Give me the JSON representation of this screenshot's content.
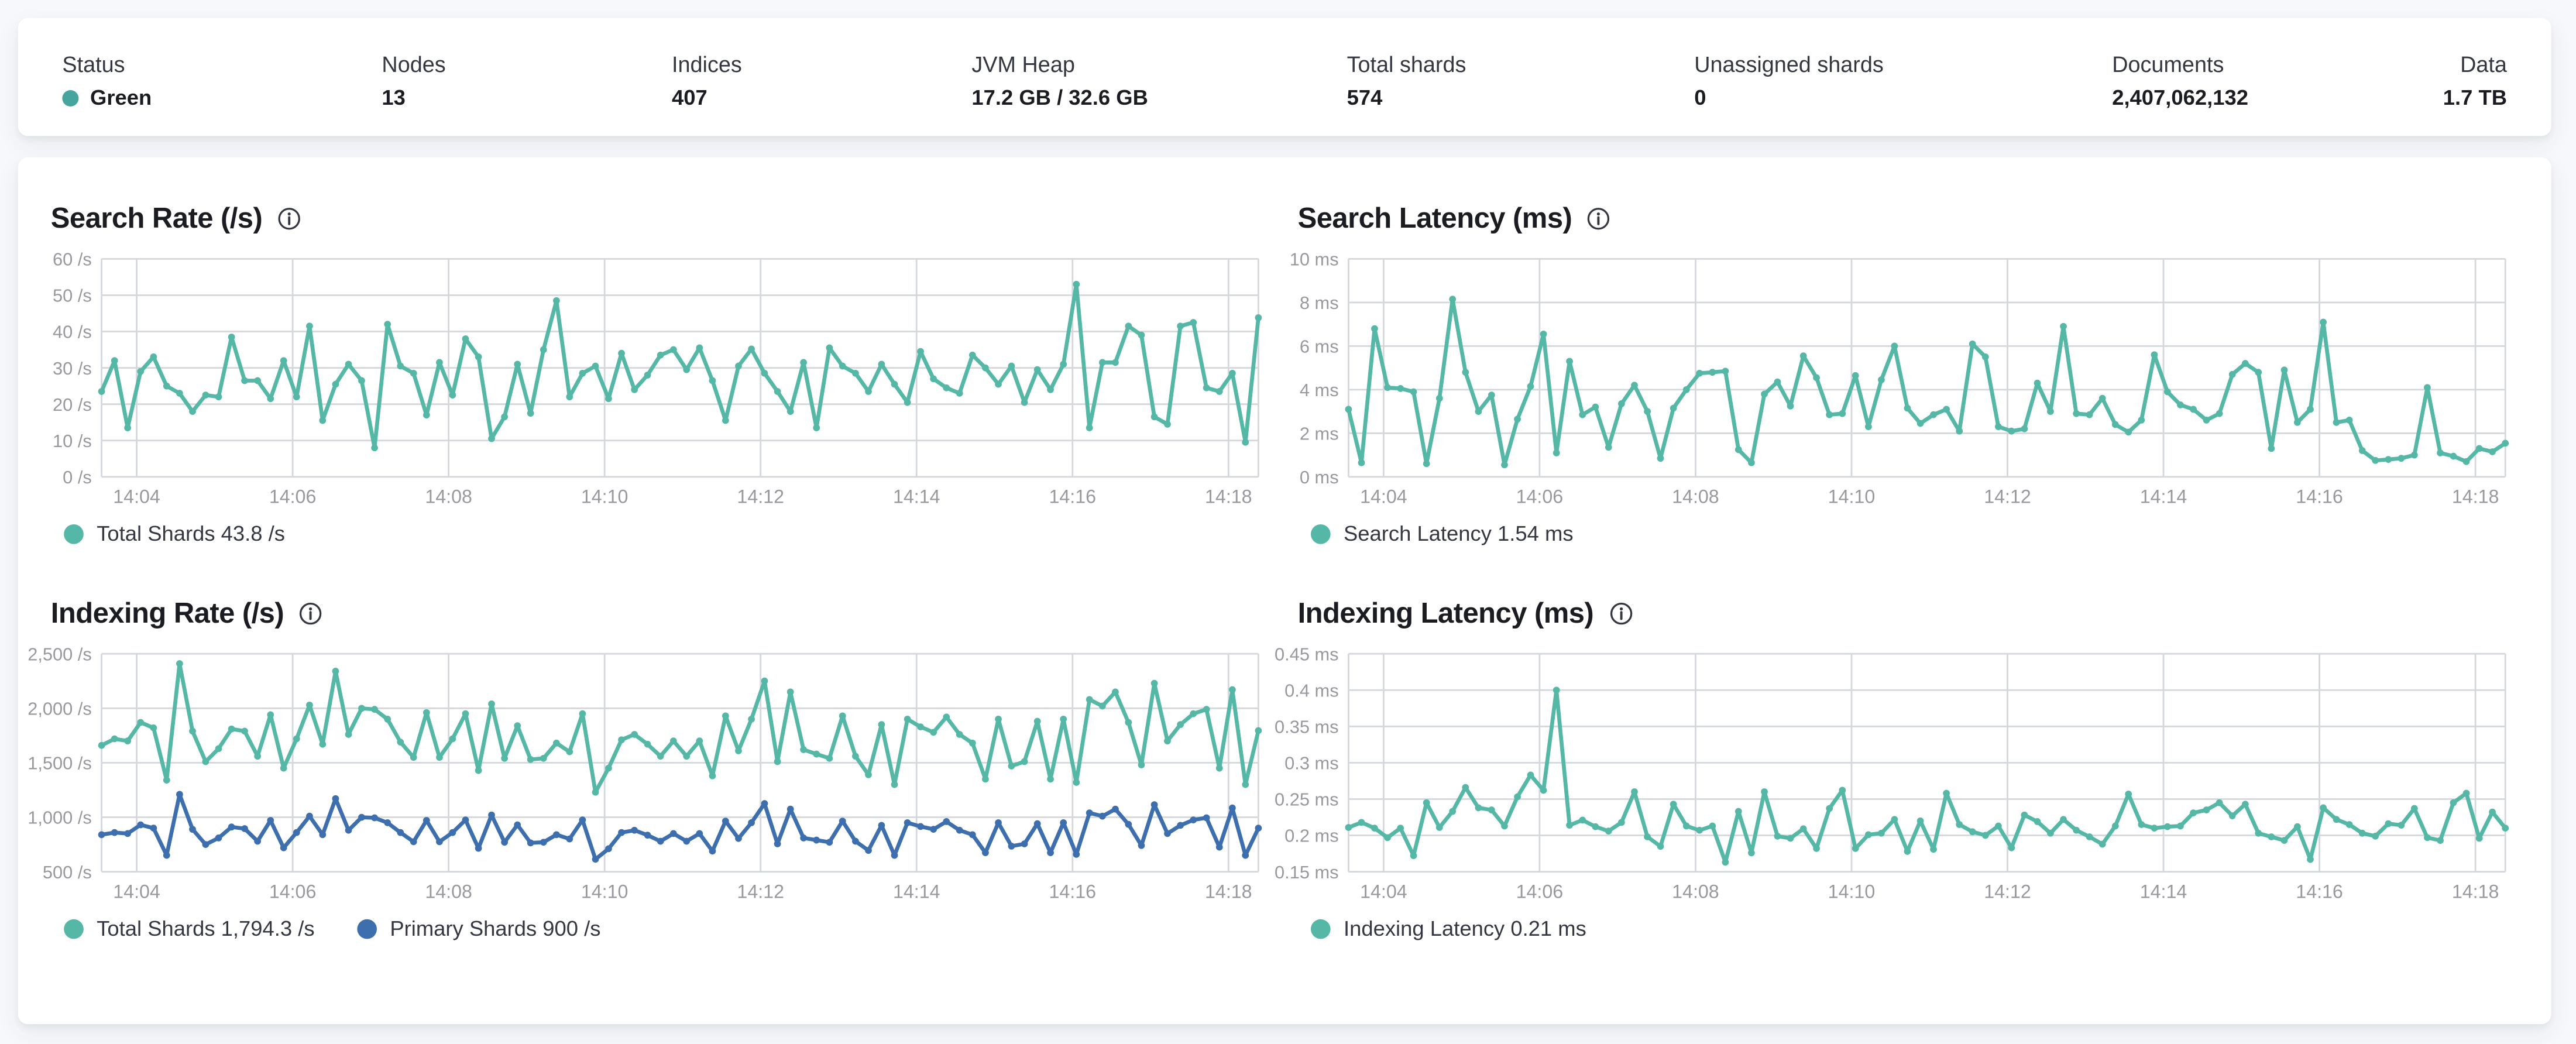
{
  "colors": {
    "teal": "#55b7a5",
    "blue": "#3d6fae",
    "health_green_dot": "#47a59f",
    "grid": "#d4d7dc",
    "tick_text": "#98999e",
    "title_text": "#1a1c21",
    "body_text": "#343741",
    "card_bg": "#ffffff",
    "page_bg": "#f7f8fb"
  },
  "summary": {
    "items": [
      {
        "label": "Status",
        "value": "Green",
        "has_dot": true,
        "x": 27
      },
      {
        "label": "Nodes",
        "value": "13",
        "x": 222
      },
      {
        "label": "Indices",
        "value": "407",
        "x": 399
      },
      {
        "label": "JVM Heap",
        "value": "17.2 GB / 32.6 GB",
        "x": 582
      },
      {
        "label": "Total shards",
        "value": "574",
        "x": 811
      },
      {
        "label": "Unassigned shards",
        "value": "0",
        "x": 1023
      },
      {
        "label": "Documents",
        "value": "2,407,062,132",
        "x": 1278
      },
      {
        "label": "Data",
        "value": "1.7 TB",
        "align_right": true
      }
    ]
  },
  "chart_data": [
    {
      "type": "line",
      "title": "Search Rate (/s)",
      "info_icon": "info-icon",
      "ylim": [
        0,
        60
      ],
      "y_ticks": [
        {
          "v": 0,
          "label": "0 /s"
        },
        {
          "v": 10,
          "label": "10 /s"
        },
        {
          "v": 20,
          "label": "20 /s"
        },
        {
          "v": 30,
          "label": "30 /s"
        },
        {
          "v": 40,
          "label": "40 /s"
        },
        {
          "v": 50,
          "label": "50 /s"
        },
        {
          "v": 60,
          "label": "60 /s"
        }
      ],
      "x_start": "14:03:33",
      "x_step_seconds": 10,
      "x_total_seconds": 890,
      "x_ticks": [
        {
          "label": "14:04",
          "sec": 27
        },
        {
          "label": "14:06",
          "sec": 147
        },
        {
          "label": "14:08",
          "sec": 267
        },
        {
          "label": "14:10",
          "sec": 387
        },
        {
          "label": "14:12",
          "sec": 507
        },
        {
          "label": "14:14",
          "sec": 627
        },
        {
          "label": "14:16",
          "sec": 747
        },
        {
          "label": "14:18",
          "sec": 867
        }
      ],
      "grid": true,
      "legend_position": "bottom-left",
      "series": [
        {
          "name": "Total Shards",
          "color": "teal",
          "latest": "43.8 /s",
          "legend_label": "Total Shards 43.8 /s",
          "values": [
            23.5,
            32,
            13.5,
            29,
            33,
            25,
            23,
            18,
            22.5,
            22,
            38.5,
            26.5,
            26.5,
            21.5,
            32,
            22,
            41.5,
            15.5,
            25.5,
            31,
            26.5,
            8,
            42,
            30.5,
            28.5,
            17,
            31.5,
            22.5,
            38,
            33,
            10.5,
            16.5,
            31,
            17.5,
            35,
            48.5,
            22,
            28.5,
            30.5,
            21.5,
            34,
            24,
            28,
            33.5,
            35,
            29.5,
            35.5,
            26.5,
            15.5,
            30.5,
            35.2,
            28.5,
            23.5,
            18,
            31.5,
            13.5,
            35.5,
            30.5,
            28.5,
            23.5,
            31,
            25.5,
            20.5,
            34.5,
            27,
            24.5,
            23,
            33.5,
            30,
            25.5,
            30.5,
            20.5,
            29.5,
            24,
            31,
            53,
            13.5,
            31.5,
            31.5,
            41.5,
            39,
            16.5,
            14.5,
            41.5,
            42.5,
            24.5,
            23.5,
            28.5,
            9.5,
            43.8
          ]
        }
      ]
    },
    {
      "type": "line",
      "title": "Search Latency (ms)",
      "info_icon": "info-icon",
      "ylim": [
        0,
        10
      ],
      "y_ticks": [
        {
          "v": 0,
          "label": "0 ms"
        },
        {
          "v": 2,
          "label": "2 ms"
        },
        {
          "v": 4,
          "label": "4 ms"
        },
        {
          "v": 6,
          "label": "6 ms"
        },
        {
          "v": 8,
          "label": "8 ms"
        },
        {
          "v": 10,
          "label": "10 ms"
        }
      ],
      "x_start": "14:03:33",
      "x_step_seconds": 10,
      "x_total_seconds": 890,
      "x_ticks": [
        {
          "label": "14:04",
          "sec": 27
        },
        {
          "label": "14:06",
          "sec": 147
        },
        {
          "label": "14:08",
          "sec": 267
        },
        {
          "label": "14:10",
          "sec": 387
        },
        {
          "label": "14:12",
          "sec": 507
        },
        {
          "label": "14:14",
          "sec": 627
        },
        {
          "label": "14:16",
          "sec": 747
        },
        {
          "label": "14:18",
          "sec": 867
        }
      ],
      "grid": true,
      "legend_position": "bottom-left",
      "series": [
        {
          "name": "Search Latency",
          "color": "teal",
          "latest": "1.54 ms",
          "legend_label": "Search Latency 1.54 ms",
          "values": [
            3.1,
            0.65,
            6.8,
            4.1,
            4.05,
            3.9,
            0.6,
            3.6,
            8.15,
            4.8,
            3.0,
            3.75,
            0.55,
            2.65,
            4.15,
            6.55,
            1.1,
            5.3,
            2.85,
            3.2,
            1.35,
            3.35,
            4.2,
            3.0,
            0.85,
            3.15,
            4.0,
            4.75,
            4.8,
            4.85,
            1.25,
            0.65,
            3.8,
            4.35,
            3.25,
            5.55,
            4.55,
            2.85,
            2.9,
            4.65,
            2.3,
            4.45,
            6.0,
            3.15,
            2.45,
            2.85,
            3.1,
            2.1,
            6.1,
            5.5,
            2.3,
            2.1,
            2.2,
            4.3,
            3.0,
            6.9,
            2.9,
            2.85,
            3.6,
            2.4,
            2.05,
            2.6,
            5.6,
            3.9,
            3.3,
            3.1,
            2.6,
            2.9,
            4.7,
            5.2,
            4.8,
            1.3,
            4.9,
            2.5,
            3.1,
            7.1,
            2.5,
            2.6,
            1.2,
            0.75,
            0.8,
            0.85,
            1.0,
            4.1,
            1.1,
            0.95,
            0.7,
            1.3,
            1.15,
            1.54
          ]
        }
      ]
    },
    {
      "type": "line",
      "title": "Indexing Rate (/s)",
      "info_icon": "info-icon",
      "ylim": [
        500,
        2500
      ],
      "y_ticks": [
        {
          "v": 500,
          "label": "500 /s"
        },
        {
          "v": 1000,
          "label": "1,000 /s"
        },
        {
          "v": 1500,
          "label": "1,500 /s"
        },
        {
          "v": 2000,
          "label": "2,000 /s"
        },
        {
          "v": 2500,
          "label": "2,500 /s"
        }
      ],
      "x_start": "14:03:33",
      "x_step_seconds": 10,
      "x_total_seconds": 890,
      "x_ticks": [
        {
          "label": "14:04",
          "sec": 27
        },
        {
          "label": "14:06",
          "sec": 147
        },
        {
          "label": "14:08",
          "sec": 267
        },
        {
          "label": "14:10",
          "sec": 387
        },
        {
          "label": "14:12",
          "sec": 507
        },
        {
          "label": "14:14",
          "sec": 627
        },
        {
          "label": "14:16",
          "sec": 747
        },
        {
          "label": "14:18",
          "sec": 867
        }
      ],
      "grid": true,
      "legend_position": "bottom-left",
      "series": [
        {
          "name": "Total Shards",
          "color": "teal",
          "latest": "1,794.3 /s",
          "legend_label": "Total Shards 1,794.3 /s",
          "values": [
            1660,
            1720,
            1700,
            1870,
            1820,
            1340,
            2410,
            1790,
            1510,
            1630,
            1810,
            1790,
            1560,
            1940,
            1450,
            1720,
            2030,
            1670,
            2340,
            1760,
            2000,
            1990,
            1900,
            1690,
            1550,
            1960,
            1550,
            1720,
            1950,
            1430,
            2040,
            1540,
            1840,
            1530,
            1540,
            1680,
            1600,
            1950,
            1230,
            1450,
            1710,
            1760,
            1670,
            1560,
            1700,
            1560,
            1700,
            1380,
            1930,
            1610,
            1900,
            2250,
            1510,
            2150,
            1620,
            1580,
            1540,
            1930,
            1560,
            1390,
            1850,
            1300,
            1900,
            1830,
            1780,
            1920,
            1760,
            1680,
            1350,
            1900,
            1470,
            1510,
            1880,
            1350,
            1900,
            1320,
            2080,
            2020,
            2150,
            1870,
            1480,
            2230,
            1700,
            1850,
            1950,
            1990,
            1450,
            2170,
            1300,
            1794.3
          ]
        },
        {
          "name": "Primary Shards",
          "color": "blue",
          "latest": "900 /s",
          "legend_label": "Primary Shards 900 /s",
          "values": [
            840,
            860,
            850,
            930,
            900,
            650,
            1210,
            890,
            750,
            810,
            910,
            895,
            780,
            970,
            720,
            860,
            1010,
            840,
            1170,
            880,
            1000,
            995,
            950,
            860,
            775,
            970,
            775,
            860,
            975,
            715,
            1020,
            770,
            930,
            765,
            770,
            840,
            800,
            975,
            615,
            710,
            860,
            880,
            835,
            780,
            850,
            780,
            850,
            690,
            965,
            805,
            950,
            1125,
            755,
            1075,
            810,
            790,
            770,
            965,
            780,
            695,
            925,
            650,
            950,
            915,
            890,
            960,
            880,
            840,
            675,
            950,
            735,
            755,
            940,
            675,
            950,
            660,
            1040,
            1010,
            1075,
            935,
            740,
            1115,
            850,
            925,
            975,
            995,
            725,
            1085,
            650,
            900
          ]
        }
      ]
    },
    {
      "type": "line",
      "title": "Indexing Latency (ms)",
      "info_icon": "info-icon",
      "ylim": [
        0.15,
        0.45
      ],
      "y_ticks": [
        {
          "v": 0.15,
          "label": "0.15 ms"
        },
        {
          "v": 0.2,
          "label": "0.2 ms"
        },
        {
          "v": 0.25,
          "label": "0.25 ms"
        },
        {
          "v": 0.3,
          "label": "0.3 ms"
        },
        {
          "v": 0.35,
          "label": "0.35 ms"
        },
        {
          "v": 0.4,
          "label": "0.4 ms"
        },
        {
          "v": 0.45,
          "label": "0.45 ms"
        }
      ],
      "x_start": "14:03:33",
      "x_step_seconds": 10,
      "x_total_seconds": 890,
      "x_ticks": [
        {
          "label": "14:04",
          "sec": 27
        },
        {
          "label": "14:06",
          "sec": 147
        },
        {
          "label": "14:08",
          "sec": 267
        },
        {
          "label": "14:10",
          "sec": 387
        },
        {
          "label": "14:12",
          "sec": 507
        },
        {
          "label": "14:14",
          "sec": 627
        },
        {
          "label": "14:16",
          "sec": 747
        },
        {
          "label": "14:18",
          "sec": 867
        }
      ],
      "grid": true,
      "legend_position": "bottom-left",
      "series": [
        {
          "name": "Indexing Latency",
          "color": "teal",
          "latest": "0.21 ms",
          "legend_label": "Indexing Latency 0.21 ms",
          "values": [
            0.211,
            0.218,
            0.21,
            0.197,
            0.21,
            0.172,
            0.245,
            0.211,
            0.233,
            0.266,
            0.238,
            0.235,
            0.213,
            0.253,
            0.283,
            0.262,
            0.4,
            0.214,
            0.221,
            0.212,
            0.206,
            0.218,
            0.26,
            0.198,
            0.185,
            0.243,
            0.213,
            0.207,
            0.213,
            0.163,
            0.233,
            0.176,
            0.26,
            0.199,
            0.196,
            0.209,
            0.182,
            0.237,
            0.262,
            0.182,
            0.201,
            0.203,
            0.222,
            0.178,
            0.22,
            0.181,
            0.258,
            0.215,
            0.205,
            0.2,
            0.213,
            0.183,
            0.228,
            0.219,
            0.203,
            0.222,
            0.207,
            0.198,
            0.188,
            0.213,
            0.257,
            0.215,
            0.21,
            0.212,
            0.213,
            0.231,
            0.235,
            0.245,
            0.227,
            0.243,
            0.203,
            0.198,
            0.193,
            0.212,
            0.167,
            0.238,
            0.222,
            0.215,
            0.203,
            0.199,
            0.216,
            0.214,
            0.237,
            0.197,
            0.193,
            0.245,
            0.258,
            0.196,
            0.232,
            0.21
          ]
        }
      ]
    }
  ]
}
